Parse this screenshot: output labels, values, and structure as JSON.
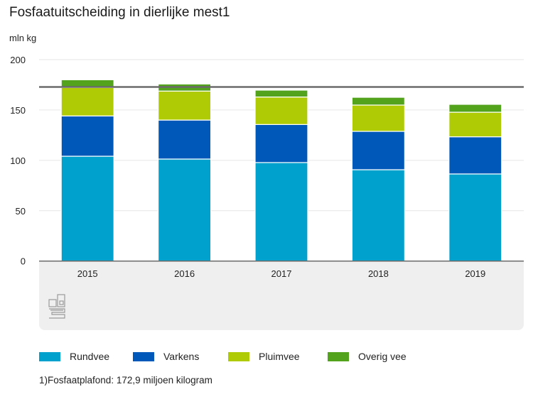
{
  "chart_data": {
    "type": "bar",
    "stacked": true,
    "title": "Fosfaatuitscheiding in dierlijke mest1",
    "ylabel": "mln kg",
    "xlabel": "",
    "ylim": [
      0,
      200
    ],
    "yticks": [
      0,
      50,
      100,
      150,
      200
    ],
    "grid": true,
    "categories": [
      "2015",
      "2016",
      "2017",
      "2018",
      "2019"
    ],
    "series": [
      {
        "name": "Rundvee",
        "color": "#00a1cd",
        "values": [
          104.1,
          101.3,
          97.8,
          90.7,
          86.5
        ]
      },
      {
        "name": "Varkens",
        "color": "#0058b8",
        "values": [
          40.0,
          38.7,
          37.8,
          38.1,
          36.9
        ]
      },
      {
        "name": "Pluimvee",
        "color": "#afcb05",
        "values": [
          28.2,
          28.8,
          27.3,
          26.1,
          24.4
        ]
      },
      {
        "name": "Overig vee",
        "color": "#53a31d",
        "values": [
          7.7,
          7.0,
          6.8,
          7.7,
          7.8
        ]
      }
    ],
    "reference_line": {
      "value": 172.9,
      "label": "Fosfaatplafond",
      "color": "#6b6b6b"
    },
    "legend_position": "bottom-left"
  },
  "footnote": "1)Fosfaatplafond: 172,9 miljoen kilogram",
  "logo": "cbs-logo"
}
